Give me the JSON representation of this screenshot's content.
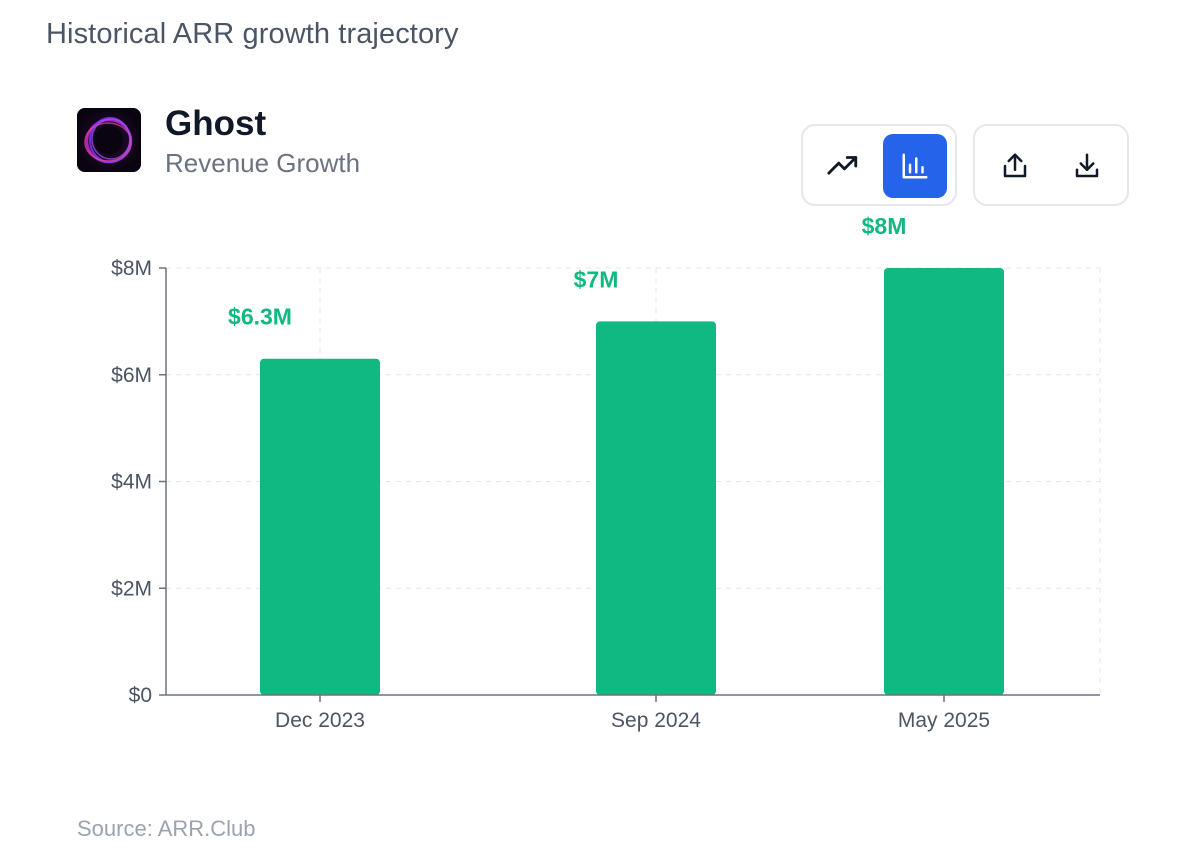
{
  "page": {
    "heading": "Historical ARR growth trajectory",
    "source": "Source: ARR.Club"
  },
  "company": {
    "name": "Ghost",
    "subtitle": "Revenue Growth",
    "logo_icon": "ghost-logo-icon"
  },
  "toolbar": {
    "chart_type_buttons": [
      {
        "name": "line-chart",
        "icon": "trending-up-icon",
        "active": false
      },
      {
        "name": "bar-chart",
        "icon": "bar-chart-icon",
        "active": true
      }
    ],
    "action_buttons": [
      {
        "name": "share",
        "icon": "share-icon"
      },
      {
        "name": "download",
        "icon": "download-icon"
      }
    ]
  },
  "colors": {
    "bar": "#10b981",
    "label": "#10b981",
    "active_button": "#2563eb",
    "axis": "#6b7280",
    "grid": "#e5e7eb"
  },
  "chart_data": {
    "type": "bar",
    "title": "Revenue Growth",
    "categories": [
      "Dec 2023",
      "Sep 2024",
      "May 2025"
    ],
    "values": [
      6.3,
      7,
      8
    ],
    "data_labels": [
      "$6.3M",
      "$7M",
      "$8M"
    ],
    "unit": "M USD",
    "ylim": [
      0,
      8
    ],
    "yticks": [
      0,
      2,
      4,
      6,
      8
    ],
    "ytick_labels": [
      "$0",
      "$2M",
      "$4M",
      "$6M",
      "$8M"
    ],
    "xlabel": "",
    "ylabel": "",
    "grid": true
  }
}
